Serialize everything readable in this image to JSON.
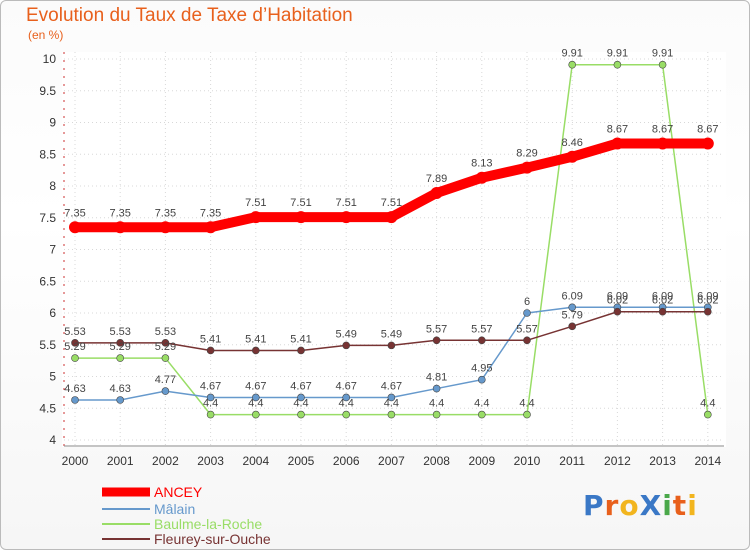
{
  "chart_data": {
    "type": "line",
    "title": "Evolution du Taux de Taxe d’Habitation",
    "subtitle": "(en %)",
    "x": [
      "2000",
      "2001",
      "2002",
      "2003",
      "2004",
      "2005",
      "2006",
      "2007",
      "2008",
      "2009",
      "2010",
      "2011",
      "2012",
      "2013",
      "2014"
    ],
    "yticks": [
      "4",
      "4.5",
      "5",
      "5.5",
      "6",
      "6.5",
      "7",
      "7.5",
      "8",
      "8.5",
      "9",
      "9.5",
      "10"
    ],
    "ylim": [
      4,
      10
    ],
    "series": [
      {
        "name": "ANCEY",
        "color": "#ff0000",
        "values": [
          7.35,
          7.35,
          7.35,
          7.35,
          7.51,
          7.51,
          7.51,
          7.51,
          7.89,
          8.13,
          8.29,
          8.46,
          8.67,
          8.67,
          8.67
        ],
        "labels": [
          "7.35",
          "7.35",
          "7.35",
          "7.35",
          "7.51",
          "7.51",
          "7.51",
          "7.51",
          "7.89",
          "8.13",
          "8.29",
          "8.46",
          "8.67",
          "8.67",
          "8.67"
        ]
      },
      {
        "name": "Mâlain",
        "color": "#6699cc",
        "values": [
          4.63,
          4.63,
          4.77,
          4.67,
          4.67,
          4.67,
          4.67,
          4.67,
          4.81,
          4.95,
          6,
          6.09,
          6.09,
          6.09,
          6.09
        ],
        "labels": [
          "4.63",
          "4.63",
          "4.77",
          "4.67",
          "4.67",
          "4.67",
          "4.67",
          "4.67",
          "4.81",
          "4.95",
          "6",
          "6.09",
          "6.09",
          "6.09",
          "6.09"
        ]
      },
      {
        "name": "Baulme-la-Roche",
        "color": "#99dd66",
        "values": [
          5.29,
          5.29,
          5.29,
          4.4,
          4.4,
          4.4,
          4.4,
          4.4,
          4.4,
          4.4,
          4.4,
          9.91,
          9.91,
          9.91,
          4.4
        ],
        "labels": [
          "5.29",
          "5.29",
          "5.29",
          "4.4",
          "4.4",
          "4.4",
          "4.4",
          "4.4",
          "4.4",
          "4.4",
          "4.4",
          "9.91",
          "9.91",
          "9.91",
          "4.4"
        ]
      },
      {
        "name": "Fleurey-sur-Ouche",
        "color": "#773333",
        "values": [
          5.53,
          5.53,
          5.53,
          5.41,
          5.41,
          5.41,
          5.49,
          5.49,
          5.57,
          5.57,
          5.57,
          5.79,
          6.02,
          6.02,
          6.02
        ],
        "labels": [
          "5.53",
          "5.53",
          "5.53",
          "5.41",
          "5.41",
          "5.41",
          "5.49",
          "5.49",
          "5.57",
          "5.57",
          "5.57",
          "5.79",
          "6.02",
          "6.02",
          "6.02"
        ]
      }
    ]
  },
  "logo": {
    "text": "ProXiti",
    "letters": [
      "P",
      "r",
      "o",
      "X",
      "i",
      "t",
      "i"
    ],
    "colors": [
      "#3a78c6",
      "#e8601c",
      "#f2b51e",
      "#3a78c6",
      "#4aa84a",
      "#e8601c",
      "#f2b51e"
    ]
  }
}
